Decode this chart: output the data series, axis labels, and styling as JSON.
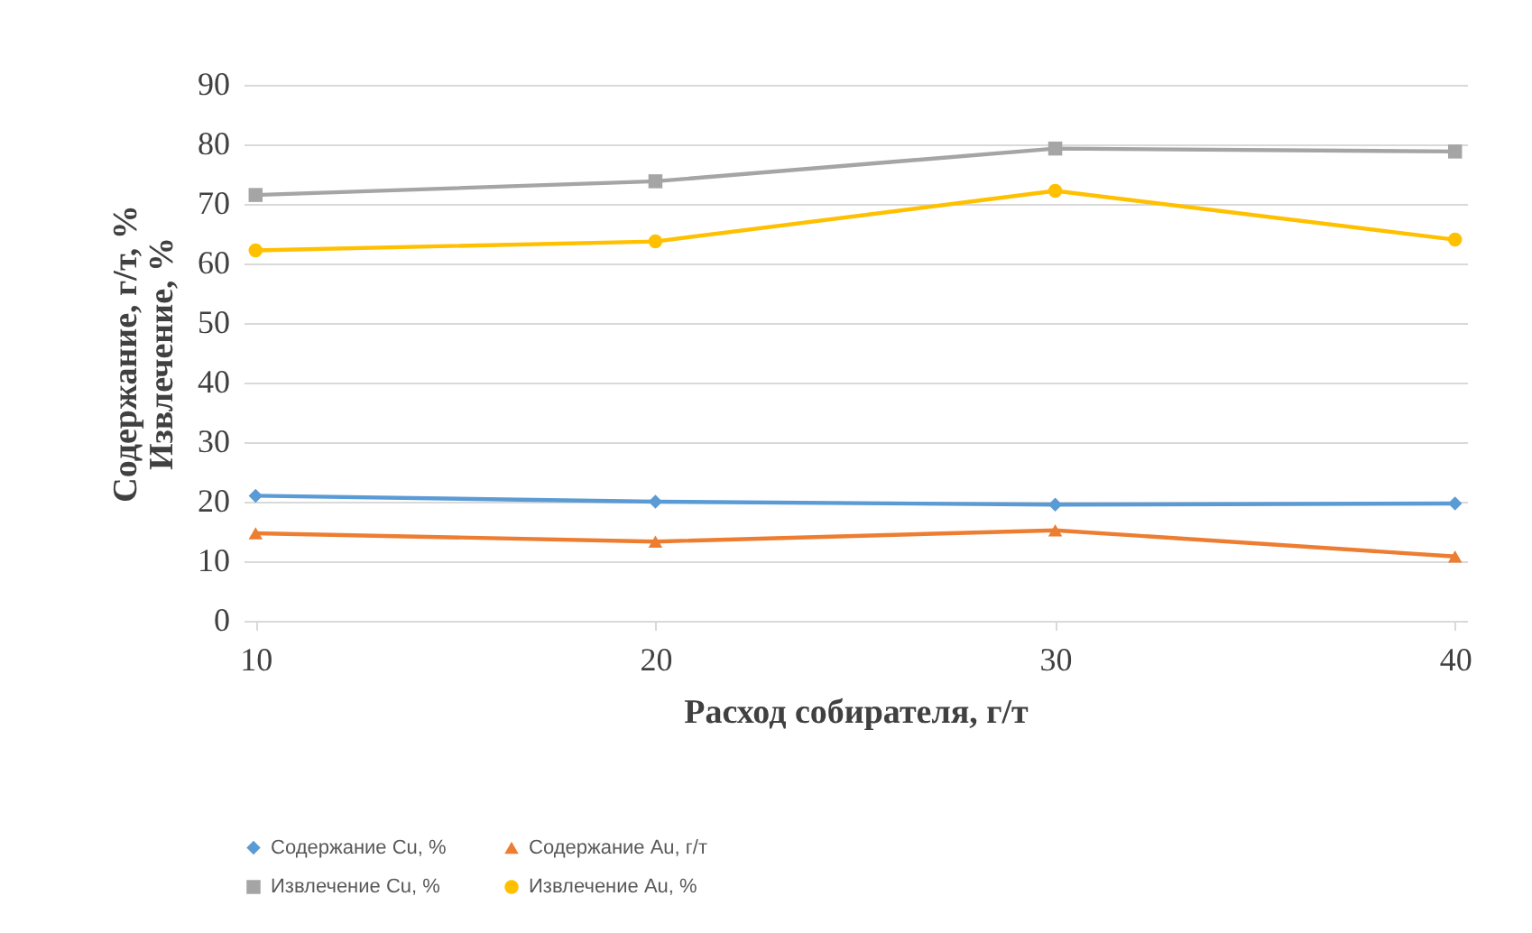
{
  "chart_data": {
    "type": "line",
    "xlabel": "Расход собирателя, г/т",
    "ylabel": "Содержание, г/т, %\nИзвлечение, %",
    "x": [
      10,
      20,
      30,
      40
    ],
    "xlim": [
      9.7,
      40.3
    ],
    "xticks": [
      10,
      20,
      30,
      40
    ],
    "ylim": [
      0,
      90
    ],
    "yticks": [
      0,
      10,
      20,
      30,
      40,
      50,
      60,
      70,
      80,
      90
    ],
    "grid": "y",
    "legend": "bottom",
    "series": [
      {
        "name": "Содержание Cu, %",
        "color": "#5b9bd5",
        "marker": "diamond",
        "values": [
          21,
          20,
          19.5,
          19.7
        ]
      },
      {
        "name": "Содержание Au, г/т",
        "color": "#ed7d31",
        "marker": "triangle",
        "values": [
          14.7,
          13.3,
          15.2,
          10.8
        ]
      },
      {
        "name": "Извлечение Cu, %",
        "color": "#a5a5a5",
        "marker": "square",
        "values": [
          71.5,
          73.8,
          79.3,
          78.8
        ]
      },
      {
        "name": "Извлечение Au, %",
        "color": "#ffc000",
        "marker": "circle",
        "values": [
          62.2,
          63.7,
          72.2,
          64
        ]
      }
    ]
  }
}
